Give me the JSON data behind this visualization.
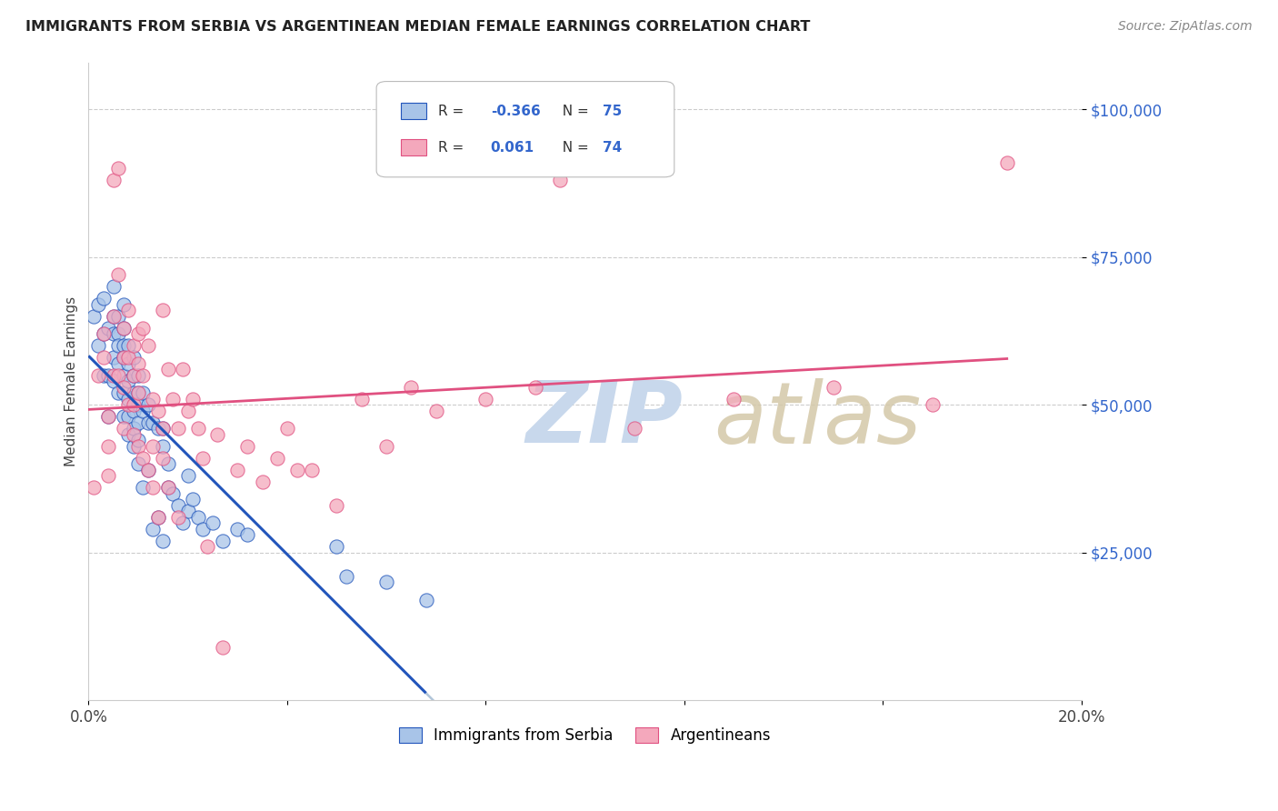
{
  "title": "IMMIGRANTS FROM SERBIA VS ARGENTINEAN MEDIAN FEMALE EARNINGS CORRELATION CHART",
  "source": "Source: ZipAtlas.com",
  "ylabel_label": "Median Female Earnings",
  "ylabel_ticks": [
    "$25,000",
    "$50,000",
    "$75,000",
    "$100,000"
  ],
  "ytick_values": [
    25000,
    50000,
    75000,
    100000
  ],
  "xlim": [
    0.0,
    0.2
  ],
  "ylim": [
    0,
    108000
  ],
  "serbia_R": "-0.366",
  "serbia_N": "75",
  "argentina_R": "0.061",
  "argentina_N": "74",
  "serbia_color": "#a8c4e8",
  "argentina_color": "#f4a8bc",
  "serbia_line_color": "#2255bb",
  "argentina_line_color": "#e05080",
  "dashed_line_color": "#b0c4d8",
  "legend_serbia_label": "Immigrants from Serbia",
  "legend_argentina_label": "Argentineans",
  "watermark_zip_color": "#c8d8ec",
  "watermark_atlas_color": "#d4c8a8",
  "serbia_scatter_x": [
    0.001,
    0.002,
    0.002,
    0.003,
    0.003,
    0.003,
    0.004,
    0.004,
    0.004,
    0.005,
    0.005,
    0.005,
    0.005,
    0.005,
    0.006,
    0.006,
    0.006,
    0.006,
    0.006,
    0.007,
    0.007,
    0.007,
    0.007,
    0.007,
    0.007,
    0.007,
    0.008,
    0.008,
    0.008,
    0.008,
    0.008,
    0.008,
    0.009,
    0.009,
    0.009,
    0.009,
    0.009,
    0.009,
    0.01,
    0.01,
    0.01,
    0.01,
    0.01,
    0.01,
    0.011,
    0.011,
    0.011,
    0.012,
    0.012,
    0.012,
    0.013,
    0.013,
    0.014,
    0.014,
    0.015,
    0.015,
    0.015,
    0.016,
    0.016,
    0.017,
    0.018,
    0.019,
    0.02,
    0.02,
    0.021,
    0.022,
    0.023,
    0.025,
    0.027,
    0.03,
    0.032,
    0.05,
    0.052,
    0.06,
    0.068
  ],
  "serbia_scatter_y": [
    65000,
    67000,
    60000,
    68000,
    62000,
    55000,
    63000,
    55000,
    48000,
    70000,
    65000,
    62000,
    58000,
    54000,
    65000,
    62000,
    60000,
    57000,
    52000,
    67000,
    63000,
    60000,
    58000,
    55000,
    52000,
    48000,
    60000,
    57000,
    54000,
    51000,
    48000,
    45000,
    58000,
    55000,
    52000,
    49000,
    46000,
    43000,
    55000,
    52000,
    50000,
    47000,
    44000,
    40000,
    52000,
    49000,
    36000,
    50000,
    47000,
    39000,
    47000,
    29000,
    46000,
    31000,
    46000,
    43000,
    27000,
    40000,
    36000,
    35000,
    33000,
    30000,
    38000,
    32000,
    34000,
    31000,
    29000,
    30000,
    27000,
    29000,
    28000,
    26000,
    21000,
    20000,
    17000
  ],
  "argentina_scatter_x": [
    0.001,
    0.002,
    0.003,
    0.003,
    0.004,
    0.004,
    0.004,
    0.005,
    0.005,
    0.005,
    0.006,
    0.006,
    0.006,
    0.007,
    0.007,
    0.007,
    0.007,
    0.008,
    0.008,
    0.008,
    0.009,
    0.009,
    0.009,
    0.009,
    0.01,
    0.01,
    0.01,
    0.01,
    0.011,
    0.011,
    0.011,
    0.012,
    0.012,
    0.013,
    0.013,
    0.013,
    0.014,
    0.014,
    0.015,
    0.015,
    0.015,
    0.016,
    0.016,
    0.017,
    0.018,
    0.018,
    0.019,
    0.02,
    0.021,
    0.022,
    0.023,
    0.024,
    0.026,
    0.027,
    0.03,
    0.032,
    0.035,
    0.038,
    0.04,
    0.042,
    0.045,
    0.05,
    0.055,
    0.06,
    0.065,
    0.07,
    0.08,
    0.09,
    0.095,
    0.11,
    0.13,
    0.15,
    0.17,
    0.185
  ],
  "argentina_scatter_y": [
    36000,
    55000,
    62000,
    58000,
    48000,
    43000,
    38000,
    88000,
    65000,
    55000,
    90000,
    72000,
    55000,
    63000,
    58000,
    53000,
    46000,
    66000,
    58000,
    50000,
    60000,
    55000,
    50000,
    45000,
    62000,
    57000,
    52000,
    43000,
    63000,
    55000,
    41000,
    60000,
    39000,
    51000,
    43000,
    36000,
    49000,
    31000,
    66000,
    46000,
    41000,
    56000,
    36000,
    51000,
    46000,
    31000,
    56000,
    49000,
    51000,
    46000,
    41000,
    26000,
    45000,
    9000,
    39000,
    43000,
    37000,
    41000,
    46000,
    39000,
    39000,
    33000,
    51000,
    43000,
    53000,
    49000,
    51000,
    53000,
    88000,
    46000,
    51000,
    53000,
    50000,
    91000
  ]
}
